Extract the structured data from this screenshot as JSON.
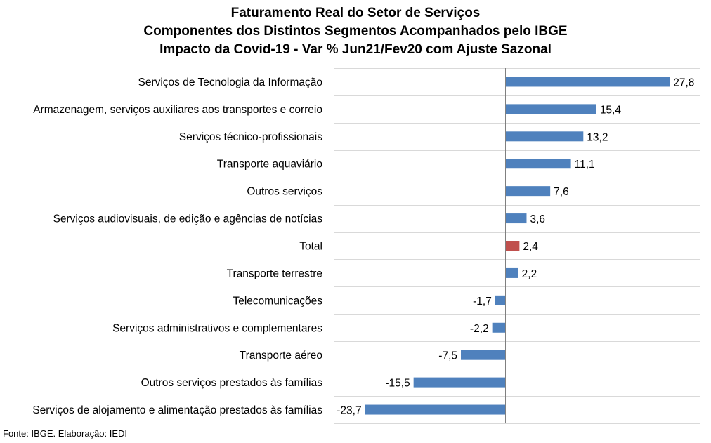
{
  "chart_data": {
    "type": "bar",
    "orientation": "horizontal",
    "title_lines": [
      "Faturamento Real do Setor de Serviços",
      "Componentes dos Distintos Segmentos Acompanhados pelo IBGE",
      "Impacto da Covid-19 - Var % Jun21/Fev20 com Ajuste Sazonal"
    ],
    "categories": [
      "Serviços de Tecnologia da Informação",
      "Armazenagem, serviços auxiliares aos transportes e correio",
      "Serviços técnico-profissionais",
      "Transporte aquaviário",
      "Outros serviços",
      "Serviços audiovisuais, de edição e agências de notícias",
      "Total",
      "Transporte terrestre",
      "Telecomunicações",
      "Serviços administrativos e complementares",
      "Transporte aéreo",
      "Outros serviços prestados às famílias",
      "Serviços de alojamento e alimentação prestados às famílias"
    ],
    "values": [
      27.8,
      15.4,
      13.2,
      11.1,
      7.6,
      3.6,
      2.4,
      2.2,
      -1.7,
      -2.2,
      -7.5,
      -15.5,
      -23.7
    ],
    "value_labels": [
      "27,8",
      "15,4",
      "13,2",
      "11,1",
      "7,6",
      "3,6",
      "2,4",
      "2,2",
      "-1,7",
      "-2,2",
      "-7,5",
      "-15,5",
      "-23,7"
    ],
    "highlight_category": "Total",
    "colors": {
      "bar": "#4f81bd",
      "highlight": "#c0504d",
      "grid": "#d9d9d9",
      "axis": "#808080"
    },
    "xlim": [
      -29,
      33
    ],
    "grid": true
  },
  "footer": "Fonte: IBGE. Elaboração: IEDI"
}
